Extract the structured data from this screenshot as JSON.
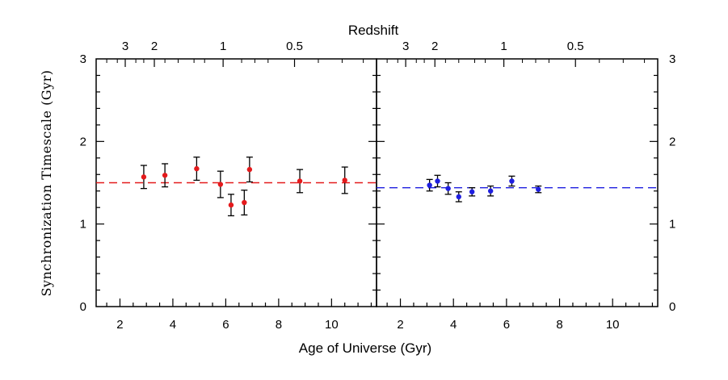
{
  "chart_data": [
    {
      "type": "scatter",
      "panel": "left",
      "xlabel": "Age of Universe (Gyr)",
      "ylabel": "Synchronization Timescale (Gyr)",
      "top_axis_label": "Redshift",
      "xlim": [
        1.1,
        11.7
      ],
      "ylim": [
        0,
        3
      ],
      "x_ticks": [
        "2",
        "4",
        "6",
        "8",
        "10"
      ],
      "y_ticks": [
        "0",
        "1",
        "2",
        "3"
      ],
      "top_ticks": [
        {
          "label": "3",
          "age": 2.2
        },
        {
          "label": "2",
          "age": 3.3
        },
        {
          "label": "1",
          "age": 5.9
        },
        {
          "label": "0.5",
          "age": 8.6
        }
      ],
      "reference_line": {
        "y": 1.5,
        "style": "dashed",
        "color": "#e41a1c"
      },
      "marker_color": "#e41a1c",
      "points": [
        {
          "x": 2.9,
          "y": 1.57,
          "err": 0.14
        },
        {
          "x": 3.7,
          "y": 1.59,
          "err": 0.14
        },
        {
          "x": 4.9,
          "y": 1.67,
          "err": 0.14
        },
        {
          "x": 5.8,
          "y": 1.48,
          "err": 0.16
        },
        {
          "x": 6.2,
          "y": 1.23,
          "err": 0.13
        },
        {
          "x": 6.7,
          "y": 1.26,
          "err": 0.15
        },
        {
          "x": 6.9,
          "y": 1.66,
          "err": 0.15
        },
        {
          "x": 8.8,
          "y": 1.52,
          "err": 0.14
        },
        {
          "x": 10.5,
          "y": 1.53,
          "err": 0.16
        }
      ]
    },
    {
      "type": "scatter",
      "panel": "right",
      "xlabel": "Age of Universe (Gyr)",
      "top_axis_label": "Redshift",
      "xlim": [
        1.1,
        11.7
      ],
      "ylim": [
        0,
        3
      ],
      "x_ticks": [
        "2",
        "4",
        "6",
        "8",
        "10"
      ],
      "y_ticks": [
        "0",
        "1",
        "2",
        "3"
      ],
      "top_ticks": [
        {
          "label": "3",
          "age": 2.2
        },
        {
          "label": "2",
          "age": 3.3
        },
        {
          "label": "1",
          "age": 5.9
        },
        {
          "label": "0.5",
          "age": 8.6
        }
      ],
      "reference_line": {
        "y": 1.44,
        "style": "dashed",
        "color": "#1f1fe0"
      },
      "marker_color": "#1f1fe0",
      "points": [
        {
          "x": 3.1,
          "y": 1.47,
          "err": 0.07
        },
        {
          "x": 3.4,
          "y": 1.52,
          "err": 0.07
        },
        {
          "x": 3.8,
          "y": 1.43,
          "err": 0.07
        },
        {
          "x": 4.2,
          "y": 1.33,
          "err": 0.06
        },
        {
          "x": 4.7,
          "y": 1.39,
          "err": 0.05
        },
        {
          "x": 5.4,
          "y": 1.4,
          "err": 0.06
        },
        {
          "x": 6.2,
          "y": 1.52,
          "err": 0.06
        },
        {
          "x": 7.2,
          "y": 1.42,
          "err": 0.04
        }
      ]
    }
  ],
  "labels": {
    "xlabel": "Age of Universe (Gyr)",
    "ylabel": "Synchronization Timescale (Gyr)",
    "top_label": "Redshift"
  }
}
